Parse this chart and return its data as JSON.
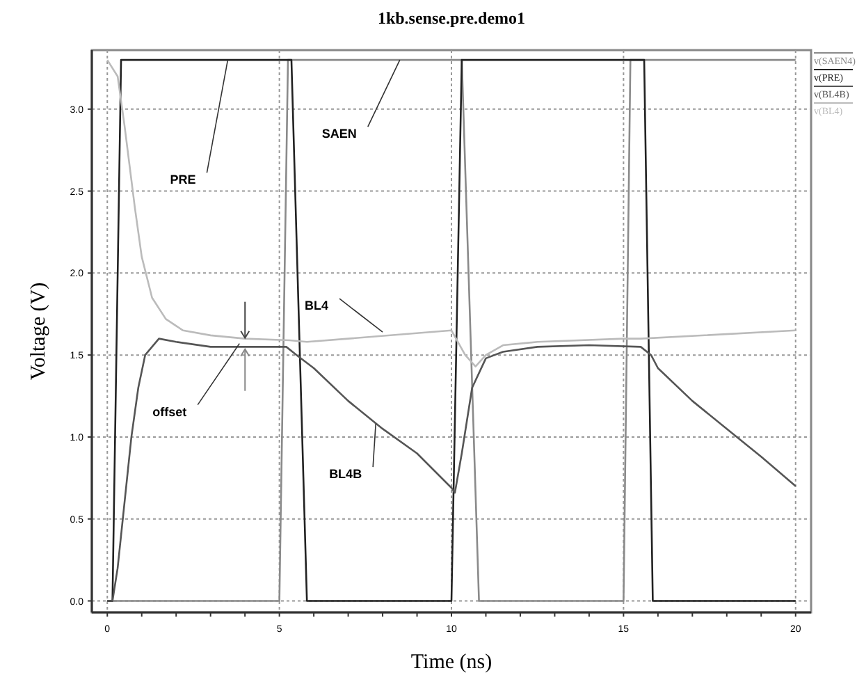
{
  "chart_data": {
    "type": "line",
    "title": "1kb.sense.pre.demo1",
    "xlabel": "Time (ns)",
    "ylabel": "Voltage (V)",
    "xlim": [
      -0.45,
      20.45
    ],
    "ylim": [
      -0.07,
      3.36
    ],
    "xticks": [
      0,
      {
        "value": 1,
        "label": null
      },
      {
        "value": 2,
        "label": null
      },
      {
        "value": 3,
        "label": null
      },
      {
        "value": 4,
        "label": null
      },
      5,
      {
        "value": 6,
        "label": null
      },
      {
        "value": 7,
        "label": null
      },
      {
        "value": 8,
        "label": null
      },
      {
        "value": 9,
        "label": null
      },
      10,
      {
        "value": 11,
        "label": null
      },
      {
        "value": 12,
        "label": null
      },
      {
        "value": 13,
        "label": null
      },
      {
        "value": 14,
        "label": null
      },
      15,
      {
        "value": 16,
        "label": null
      },
      {
        "value": 17,
        "label": null
      },
      {
        "value": 18,
        "label": null
      },
      {
        "value": 19,
        "label": null
      },
      20
    ],
    "yticks": [
      {
        "value": 0,
        "label": "0.0"
      },
      {
        "value": 0.5,
        "label": "0.5"
      },
      {
        "value": 1,
        "label": "1.0"
      },
      {
        "value": 1.5,
        "label": "1.5"
      },
      {
        "value": 2,
        "label": "2.0"
      },
      {
        "value": 2.5,
        "label": "2.5"
      },
      {
        "value": 3,
        "label": "3.0"
      }
    ],
    "grid": true,
    "legend": "top right",
    "marker": "none",
    "line_style": "solid",
    "series": [
      {
        "name": "v(SAEN4)",
        "color": "#8a8a8a",
        "x": [
          0,
          5.0,
          5.25,
          10.3,
          10.8,
          15.0,
          15.2,
          20
        ],
        "values": [
          0,
          0,
          3.3,
          3.3,
          0,
          0,
          3.3,
          3.3
        ]
      },
      {
        "name": "v(PRE)",
        "color": "#222222",
        "x": [
          0,
          0.15,
          0.4,
          5.35,
          5.8,
          10.0,
          10.3,
          15.6,
          15.85,
          20
        ],
        "values": [
          0,
          0,
          3.3,
          3.3,
          0,
          0,
          3.3,
          3.3,
          0,
          0
        ]
      },
      {
        "name": "v(BL4B)",
        "color": "#555555",
        "x": [
          0,
          0.15,
          0.3,
          0.5,
          0.7,
          0.9,
          1.1,
          1.5,
          2,
          3,
          5.2,
          5.5,
          6,
          7,
          8,
          9,
          10,
          10.1,
          10.3,
          10.6,
          11,
          11.5,
          12.5,
          14,
          15.5,
          15.8,
          16,
          17,
          18,
          19,
          20
        ],
        "values": [
          0,
          0,
          0.2,
          0.6,
          1.0,
          1.3,
          1.5,
          1.6,
          1.58,
          1.55,
          1.55,
          1.5,
          1.42,
          1.22,
          1.05,
          0.9,
          0.69,
          0.66,
          0.9,
          1.3,
          1.48,
          1.52,
          1.55,
          1.56,
          1.55,
          1.5,
          1.42,
          1.22,
          1.05,
          0.88,
          0.7
        ]
      },
      {
        "name": "v(BL4)",
        "color": "#bbbbbb",
        "x": [
          0,
          0.3,
          0.5,
          0.8,
          1.0,
          1.3,
          1.7,
          2.2,
          3,
          4,
          5.3,
          5.8,
          7,
          10,
          10.4,
          10.7,
          11,
          11.5,
          12.5,
          15,
          15.5,
          20
        ],
        "values": [
          3.3,
          3.2,
          2.9,
          2.4,
          2.1,
          1.85,
          1.72,
          1.65,
          1.62,
          1.6,
          1.59,
          1.58,
          1.6,
          1.65,
          1.5,
          1.43,
          1.5,
          1.56,
          1.58,
          1.6,
          1.6,
          1.65
        ]
      }
    ],
    "annotations": [
      {
        "text": "PRE",
        "x": 3.5,
        "y": 3.3
      },
      {
        "text": "SAEN",
        "x": 8.5,
        "y": 3.3
      },
      {
        "text": "BL4",
        "x": 8.0,
        "y": 1.64
      },
      {
        "text": "BL4B",
        "x": 7.8,
        "y": 1.08
      },
      {
        "text": "offset",
        "x": 3.84,
        "y": 1.57
      }
    ]
  }
}
